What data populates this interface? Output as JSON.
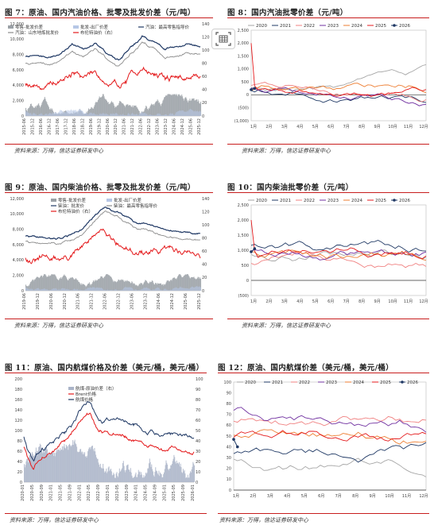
{
  "figures": [
    {
      "title": "图 7：原油、国内汽油价格、批零及批发价差（元/吨）",
      "source": "资料来源：万得，信达证券研发中心",
      "chart_data": {
        "type": "area",
        "series": [
          {
            "name": "零售-批发价差",
            "color": "#9aa0a6"
          },
          {
            "name": "批发-出厂价差",
            "color": "#b6c7e6"
          },
          {
            "name": "汽油：最高零售指导价",
            "color": "#1f3864"
          },
          {
            "name": "汽油：山东地炼批发价",
            "color": "#8c8c8c"
          },
          {
            "name": "布伦特油价（右）",
            "color": "#e41a1c"
          }
        ],
        "x": [
          "2015-06",
          "2015-12",
          "2016-06",
          "2016-12",
          "2017-06",
          "2017-12",
          "2018-06",
          "2018-12",
          "2019-06",
          "2019-12",
          "2020-06",
          "2020-12",
          "2021-06",
          "2021-12",
          "2022-06",
          "2022-12",
          "2023-06",
          "2023-12",
          "2024-06",
          "2024-12",
          "2025-06",
          "2025-12"
        ],
        "yticks_left": [
          "0",
          "2,000",
          "4,000",
          "6,000",
          "8,000",
          "10,000",
          "12,000"
        ],
        "yticks_right": [
          "0",
          "20",
          "40",
          "60",
          "80",
          "100",
          "120",
          "140"
        ],
        "ylim_left": [
          0,
          12000
        ],
        "ylim_right": [
          0,
          140
        ],
        "legend": "top-left"
      }
    },
    {
      "title": "图 8：国内汽油批零价差（元/吨）",
      "source": "资料来源：万得，信达证券研发中心",
      "chart_data": {
        "type": "line",
        "series": [
          {
            "name": "2020",
            "color": "#a6a6a6"
          },
          {
            "name": "2021",
            "color": "#1f3864"
          },
          {
            "name": "2022",
            "color": "#f08080"
          },
          {
            "name": "2023",
            "color": "#7030a0"
          },
          {
            "name": "2024",
            "color": "#ed7d31"
          },
          {
            "name": "2025",
            "color": "#e41a1c"
          },
          {
            "name": "2026",
            "color": "#1f3864"
          }
        ],
        "categories": [
          "1月",
          "2月",
          "3月",
          "4月",
          "5月",
          "6月",
          "7月",
          "8月",
          "9月",
          "10月",
          "11月",
          "12月"
        ],
        "yticks": [
          "(1,000)",
          "(500)",
          "0",
          "500",
          "1,000",
          "1,500",
          "2,000",
          "2,500"
        ],
        "ylim": [
          -1000,
          2500
        ],
        "legend": "top"
      }
    },
    {
      "title": "图 9：原油、国内柴油价格、批零及批发价差（元/吨）",
      "source": "资料来源：万得，信达证券研发中心",
      "chart_data": {
        "type": "area",
        "series": [
          {
            "name": "零售-批发价差",
            "color": "#9aa0a6"
          },
          {
            "name": "批发-出厂价差",
            "color": "#b6c7e6"
          },
          {
            "name": "柴油：批发价",
            "color": "#1f3864"
          },
          {
            "name": "柴油：最高零售指导价",
            "color": "#8c8c8c"
          },
          {
            "name": "布伦特油价（右）",
            "color": "#e41a1c"
          }
        ],
        "x": [
          "2019-06",
          "2019-12",
          "2020-06",
          "2020-12",
          "2021-06",
          "2021-12",
          "2022-06",
          "2022-12",
          "2023-06",
          "2023-12",
          "2024-06",
          "2024-12",
          "2025-06",
          "2025-12"
        ],
        "yticks_left": [
          "0",
          "2,000",
          "4,000",
          "6,000",
          "8,000",
          "10,000",
          "12,000"
        ],
        "yticks_right": [
          "0",
          "20",
          "40",
          "60",
          "80",
          "100",
          "120",
          "140"
        ],
        "ylim_left": [
          0,
          12000
        ],
        "ylim_right": [
          0,
          140
        ],
        "legend": "top-center"
      }
    },
    {
      "title": "图 10：国内柴油批零价差（元/吨）",
      "source": "资料来源：万得，信达证券研发中心",
      "chart_data": {
        "type": "line",
        "series": [
          {
            "name": "2020",
            "color": "#a6a6a6"
          },
          {
            "name": "2021",
            "color": "#1f3864"
          },
          {
            "name": "2022",
            "color": "#f08080"
          },
          {
            "name": "2023",
            "color": "#7030a0"
          },
          {
            "name": "2024",
            "color": "#ed7d31"
          },
          {
            "name": "2025",
            "color": "#e41a1c"
          },
          {
            "name": "2026",
            "color": "#1f3864"
          }
        ],
        "categories": [
          "1月",
          "2月",
          "3月",
          "4月",
          "5月",
          "6月",
          "7月",
          "8月",
          "9月",
          "10月",
          "11月",
          "12月"
        ],
        "yticks": [
          "(500)",
          "0",
          "500",
          "1,000",
          "1,500",
          "2,000",
          "2,500"
        ],
        "ylim": [
          -500,
          2500
        ],
        "legend": "top"
      }
    },
    {
      "title": "图 11：原油、国内航煤价格及价差（美元/桶，美元/桶）",
      "source": "资料来源：万得，信达证券研发中心",
      "chart_data": {
        "type": "area",
        "series": [
          {
            "name": "航煤-原油价差（右）",
            "color": "#aab4c8"
          },
          {
            "name": "Brent价格",
            "color": "#e41a1c"
          },
          {
            "name": "航煤价格",
            "color": "#1f3864"
          }
        ],
        "x": [
          "2020-01",
          "2020-05",
          "2020-09",
          "2021-01",
          "2021-05",
          "2021-09",
          "2022-01",
          "2022-05",
          "2022-09",
          "2023-01",
          "2023-05",
          "2023-09",
          "2024-01",
          "2024-05",
          "2024-09",
          "2025-01",
          "2025-05",
          "2025-09",
          "2026-01"
        ],
        "yticks_left": [
          "0",
          "20",
          "40",
          "60",
          "80",
          "100",
          "120",
          "140",
          "160",
          "180",
          "200"
        ],
        "yticks_right": [
          "0",
          "10",
          "20",
          "30",
          "40",
          "50",
          "60",
          "70",
          "80",
          "90",
          "100"
        ],
        "ylim_left": [
          0,
          200
        ],
        "ylim_right": [
          0,
          100
        ],
        "legend": "top-center"
      }
    },
    {
      "title": "图 12：原油、国内航煤价差（美元/桶，美元/桶）",
      "source": "资料来源：万得，信达证券研发中心",
      "chart_data": {
        "type": "line",
        "series": [
          {
            "name": "2020",
            "color": "#a6a6a6"
          },
          {
            "name": "2021",
            "color": "#1f3864"
          },
          {
            "name": "2022",
            "color": "#f08080"
          },
          {
            "name": "2023",
            "color": "#7030a0"
          },
          {
            "name": "2024",
            "color": "#ed7d31"
          },
          {
            "name": "2025",
            "color": "#e41a1c"
          },
          {
            "name": "2026",
            "color": "#1f3864"
          }
        ],
        "categories": [
          "1月",
          "2月",
          "3月",
          "4月",
          "5月",
          "6月",
          "7月",
          "8月",
          "9月",
          "10月",
          "11月",
          "12月"
        ],
        "yticks": [
          "0",
          "10",
          "20",
          "30",
          "40",
          "50",
          "60",
          "70",
          "80",
          "90",
          "100"
        ],
        "ylim": [
          0,
          100
        ],
        "legend": "top"
      }
    }
  ]
}
